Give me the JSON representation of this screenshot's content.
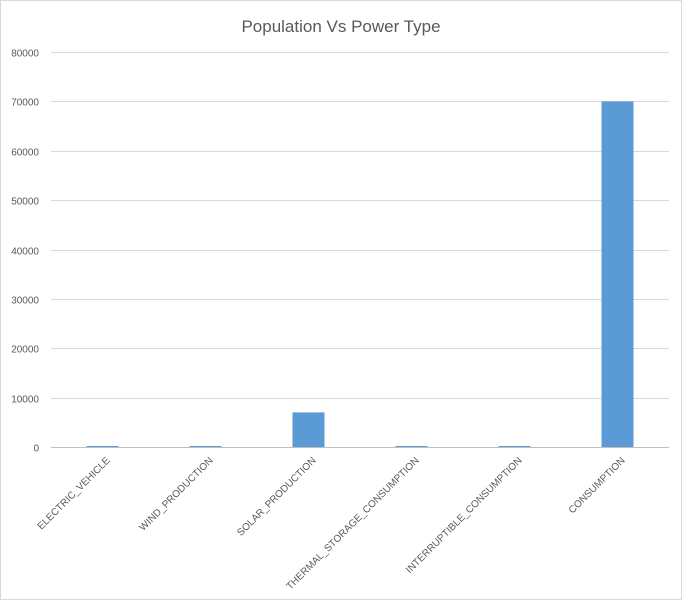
{
  "chart_data": {
    "type": "bar",
    "title": "Population Vs Power Type",
    "xlabel": "",
    "ylabel": "",
    "categories": [
      "ELECTRIC_VEHICLE",
      "WIND_PRODUCTION",
      "SOLAR_PRODUCTION",
      "THERMAL_STORAGE_CONSUMPTION",
      "INTERRUPTIBLE_CONSUMPTION",
      "CONSUMPTION"
    ],
    "values": [
      200,
      200,
      7000,
      200,
      200,
      70000
    ],
    "ylim": [
      0,
      80000
    ],
    "yticks": [
      0,
      10000,
      20000,
      30000,
      40000,
      50000,
      60000,
      70000,
      80000
    ],
    "grid": true,
    "legend": "none",
    "bar_color": "#5b9bd5"
  }
}
